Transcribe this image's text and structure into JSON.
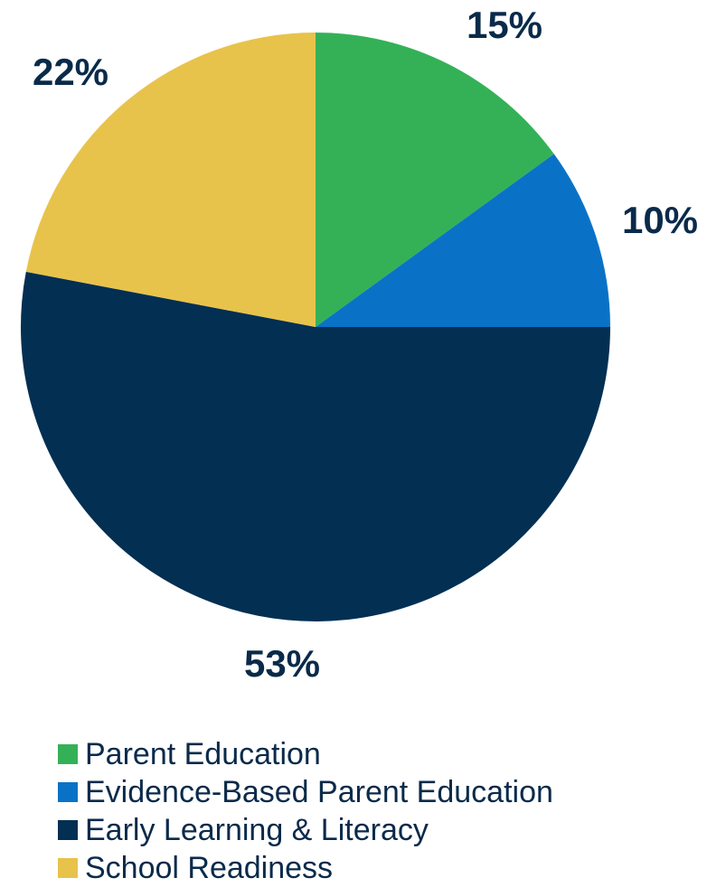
{
  "chart_data": {
    "type": "pie",
    "title": "",
    "legend_position": "bottom",
    "slices": [
      {
        "label": "Parent Education",
        "value": 15,
        "display": "15%",
        "color": "#34b157"
      },
      {
        "label": "Evidence-Based Parent Education",
        "value": 10,
        "display": "10%",
        "color": "#0a72c6"
      },
      {
        "label": "Early Learning & Literacy",
        "value": 53,
        "display": "53%",
        "color": "#022f52"
      },
      {
        "label": "School Readiness",
        "value": 22,
        "display": "22%",
        "color": "#e8c34b"
      }
    ]
  }
}
